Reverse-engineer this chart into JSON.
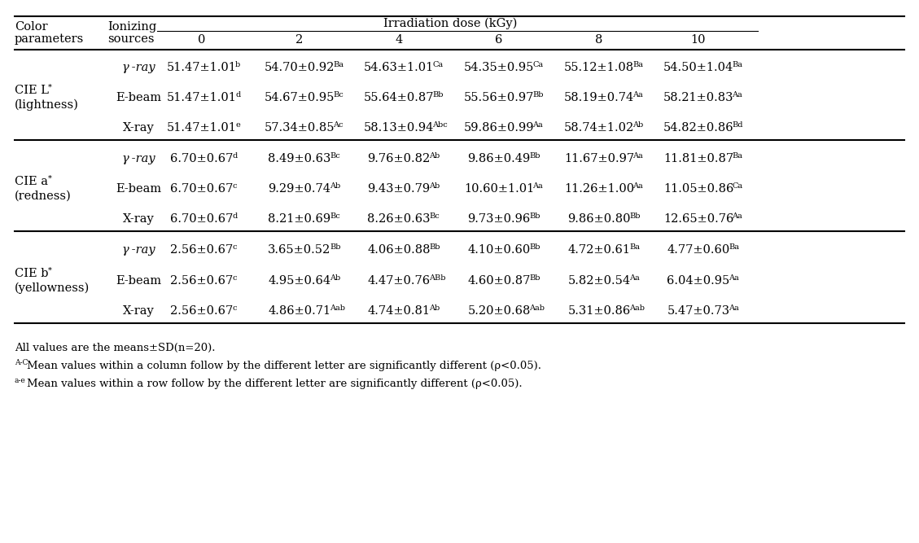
{
  "title": "Irradiation dose (kGy)",
  "col_headers": [
    "0",
    "2",
    "4",
    "6",
    "8",
    "10"
  ],
  "ionizing_sources": [
    "γ -ray",
    "E-beam",
    "X-ray"
  ],
  "cie_labels": [
    [
      "CIE L",
      "*",
      "(lightness)"
    ],
    [
      "CIE a",
      "*",
      "(redness)"
    ],
    [
      "CIE b",
      "*",
      "(yellowness)"
    ]
  ],
  "table_data": [
    [
      [
        [
          "51.47±1.01",
          "b"
        ],
        [
          "54.70±0.92",
          "Ba"
        ],
        [
          "54.63±1.01",
          "Ca"
        ],
        [
          "54.35±0.95",
          "Ca"
        ],
        [
          "55.12±1.08",
          "Ba"
        ],
        [
          "54.50±1.04",
          "Ba"
        ]
      ],
      [
        [
          "51.47±1.01",
          "d"
        ],
        [
          "54.67±0.95",
          "Bc"
        ],
        [
          "55.64±0.87",
          "Bb"
        ],
        [
          "55.56±0.97",
          "Bb"
        ],
        [
          "58.19±0.74",
          "Aa"
        ],
        [
          "58.21±0.83",
          "Aa"
        ]
      ],
      [
        [
          "51.47±1.01",
          "e"
        ],
        [
          "57.34±0.85",
          "Ac"
        ],
        [
          "58.13±0.94",
          "Abc"
        ],
        [
          "59.86±0.99",
          "Aa"
        ],
        [
          "58.74±1.02",
          "Ab"
        ],
        [
          "54.82±0.86",
          "Bd"
        ]
      ]
    ],
    [
      [
        [
          "6.70±0.67",
          "d"
        ],
        [
          "8.49±0.63",
          "Bc"
        ],
        [
          "9.76±0.82",
          "Ab"
        ],
        [
          "9.86±0.49",
          "Bb"
        ],
        [
          "11.67±0.97",
          "Aa"
        ],
        [
          "11.81±0.87",
          "Ba"
        ]
      ],
      [
        [
          "6.70±0.67",
          "c"
        ],
        [
          "9.29±0.74",
          "Ab"
        ],
        [
          "9.43±0.79",
          "Ab"
        ],
        [
          "10.60±1.01",
          "Aa"
        ],
        [
          "11.26±1.00",
          "Aa"
        ],
        [
          "11.05±0.86",
          "Ca"
        ]
      ],
      [
        [
          "6.70±0.67",
          "d"
        ],
        [
          "8.21±0.69",
          "Bc"
        ],
        [
          "8.26±0.63",
          "Bc"
        ],
        [
          "9.73±0.96",
          "Bb"
        ],
        [
          "9.86±0.80",
          "Bb"
        ],
        [
          "12.65±0.76",
          "Aa"
        ]
      ]
    ],
    [
      [
        [
          "2.56±0.67",
          "c"
        ],
        [
          "3.65±0.52",
          "Bb"
        ],
        [
          "4.06±0.88",
          "Bb"
        ],
        [
          "4.10±0.60",
          "Bb"
        ],
        [
          "4.72±0.61",
          "Ba"
        ],
        [
          "4.77±0.60",
          "Ba"
        ]
      ],
      [
        [
          "2.56±0.67",
          "c"
        ],
        [
          "4.95±0.64",
          "Ab"
        ],
        [
          "4.47±0.76",
          "ABb"
        ],
        [
          "4.60±0.87",
          "Bb"
        ],
        [
          "5.82±0.54",
          "Aa"
        ],
        [
          "6.04±0.95",
          "Aa"
        ]
      ],
      [
        [
          "2.56±0.67",
          "c"
        ],
        [
          "4.86±0.71",
          "Aab"
        ],
        [
          "4.74±0.81",
          "Ab"
        ],
        [
          "5.20±0.68",
          "Aab"
        ],
        [
          "5.31±0.86",
          "Aab"
        ],
        [
          "5.47±0.73",
          "Aa"
        ]
      ]
    ]
  ],
  "footnotes": [
    {
      "sup": "",
      "text": "All values are the means±SD(n=20)."
    },
    {
      "sup": "A-C",
      "text": "Mean values within a column follow by the different letter are significantly different (ρ<0.05)."
    },
    {
      "sup": "a-e",
      "text": "Mean values within a row follow by the different letter are significantly different (ρ<0.05)."
    }
  ],
  "bg_color": "#ffffff",
  "text_color": "#000000",
  "fs_main": 10.5,
  "fs_super": 7.0,
  "fs_footnote": 9.5,
  "fs_footnote_sup": 6.5
}
